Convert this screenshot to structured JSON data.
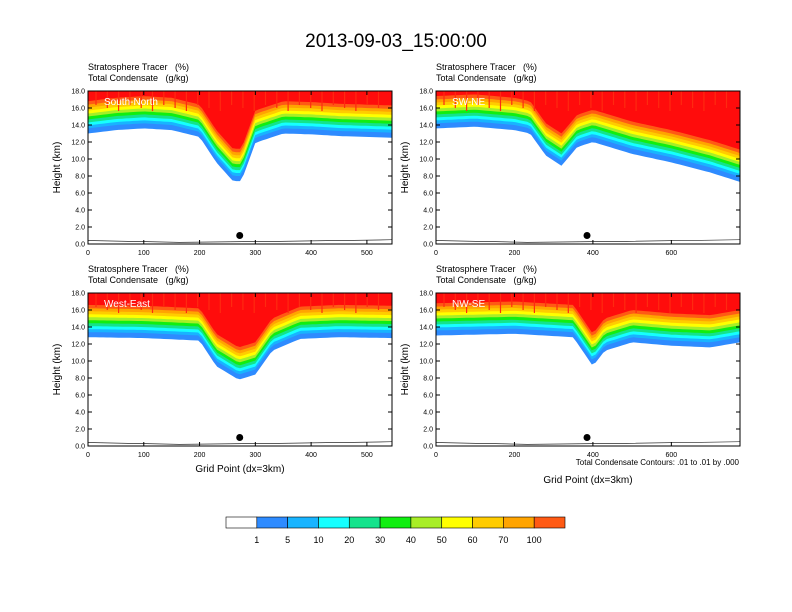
{
  "title": "2013-09-03_15:00:00",
  "panel_header": {
    "line1": "Stratosphere Tracer   (%)",
    "line2": "Total Condensate   (g/kg)"
  },
  "contour_note": "Total Condensate Contours: .01 to .01 by .000",
  "colorbar": {
    "labels": [
      "1",
      "5",
      "10",
      "20",
      "30",
      "40",
      "50",
      "60",
      "70",
      "100"
    ],
    "colors": [
      "#ffffff",
      "#2e8bff",
      "#18b4ff",
      "#16ffff",
      "#14e38c",
      "#11ee11",
      "#a8ee27",
      "#ffff00",
      "#ffcc00",
      "#ffa400",
      "#ff5a14",
      "#ff0c0c"
    ]
  },
  "chart_data": [
    {
      "type": "heatmap",
      "name": "South-North",
      "title": "South-North",
      "xlabel": "",
      "ylabel": "Height (km)",
      "xlim": [
        0,
        545
      ],
      "ylim": [
        0,
        18
      ],
      "xticks": [
        "0",
        "100",
        "200",
        "300",
        "400",
        "500"
      ],
      "yticks": [
        "0.0",
        "2.0",
        "4.0",
        "6.0",
        "8.0",
        "10.0",
        "12.0",
        "14.0",
        "16.0",
        "18.0"
      ],
      "marker": [
        272,
        1.0
      ],
      "tropopause_profile": [
        [
          0,
          13.6
        ],
        [
          50,
          14.0
        ],
        [
          100,
          14.2
        ],
        [
          150,
          14.0
        ],
        [
          200,
          13.2
        ],
        [
          230,
          10.2
        ],
        [
          260,
          8.0
        ],
        [
          275,
          8.0
        ],
        [
          300,
          12.5
        ],
        [
          350,
          13.6
        ],
        [
          400,
          13.5
        ],
        [
          450,
          13.3
        ],
        [
          500,
          13.2
        ],
        [
          545,
          13.1
        ]
      ]
    },
    {
      "type": "heatmap",
      "name": "SW-NE",
      "title": "SW-NE",
      "xlabel": "",
      "ylabel": "Height (km)",
      "xlim": [
        0,
        775
      ],
      "ylim": [
        0,
        18
      ],
      "xticks": [
        "0",
        "200",
        "400",
        "600"
      ],
      "yticks": [
        "0.0",
        "2.0",
        "4.0",
        "6.0",
        "8.0",
        "10.0",
        "12.0",
        "14.0",
        "16.0",
        "18.0"
      ],
      "marker": [
        385,
        1.0
      ],
      "tropopause_profile": [
        [
          0,
          14.2
        ],
        [
          100,
          14.4
        ],
        [
          200,
          14.0
        ],
        [
          240,
          13.6
        ],
        [
          280,
          11.0
        ],
        [
          320,
          9.8
        ],
        [
          360,
          12.0
        ],
        [
          400,
          12.6
        ],
        [
          500,
          11.2
        ],
        [
          600,
          10.2
        ],
        [
          700,
          9.0
        ],
        [
          775,
          7.9
        ]
      ]
    },
    {
      "type": "heatmap",
      "name": "West-East",
      "title": "West-East",
      "xlabel": "Grid Point (dx=3km)",
      "ylabel": "Height (km)",
      "xlim": [
        0,
        545
      ],
      "ylim": [
        0,
        18
      ],
      "xticks": [
        "0",
        "100",
        "200",
        "300",
        "400",
        "500"
      ],
      "yticks": [
        "0.0",
        "2.0",
        "4.0",
        "6.0",
        "8.0",
        "10.0",
        "12.0",
        "14.0",
        "16.0",
        "18.0"
      ],
      "marker": [
        272,
        1.0
      ],
      "tropopause_profile": [
        [
          0,
          13.4
        ],
        [
          100,
          13.3
        ],
        [
          200,
          13.0
        ],
        [
          230,
          10.0
        ],
        [
          270,
          8.4
        ],
        [
          300,
          9.0
        ],
        [
          330,
          11.8
        ],
        [
          380,
          13.2
        ],
        [
          450,
          13.4
        ],
        [
          545,
          13.3
        ]
      ]
    },
    {
      "type": "heatmap",
      "name": "NW-SE",
      "title": "NW-SE",
      "xlabel": "Grid Point (dx=3km)",
      "ylabel": "Height (km)",
      "xlim": [
        0,
        775
      ],
      "ylim": [
        0,
        18
      ],
      "xticks": [
        "0",
        "200",
        "400",
        "600"
      ],
      "yticks": [
        "0.0",
        "2.0",
        "4.0",
        "6.0",
        "8.0",
        "10.0",
        "12.0",
        "14.0",
        "16.0",
        "18.0"
      ],
      "marker": [
        385,
        1.0
      ],
      "tropopause_profile": [
        [
          0,
          13.6
        ],
        [
          200,
          13.8
        ],
        [
          350,
          13.4
        ],
        [
          400,
          10.0
        ],
        [
          430,
          11.8
        ],
        [
          500,
          12.8
        ],
        [
          600,
          12.4
        ],
        [
          700,
          12.2
        ],
        [
          775,
          12.8
        ]
      ]
    }
  ]
}
